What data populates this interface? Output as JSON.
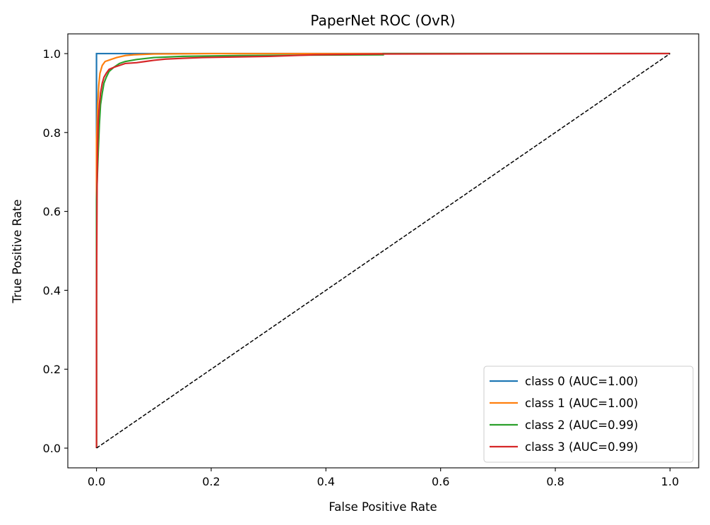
{
  "chart_data": {
    "type": "line",
    "title": "PaperNet ROC (OvR)",
    "xlabel": "False Positive Rate",
    "ylabel": "True Positive Rate",
    "xlim": [
      -0.05,
      1.05
    ],
    "ylim": [
      -0.05,
      1.05
    ],
    "xticks": [
      0.0,
      0.2,
      0.4,
      0.6,
      0.8,
      1.0
    ],
    "yticks": [
      0.0,
      0.2,
      0.4,
      0.6,
      0.8,
      1.0
    ],
    "xtick_labels": [
      "0.0",
      "0.2",
      "0.4",
      "0.6",
      "0.8",
      "1.0"
    ],
    "ytick_labels": [
      "0.0",
      "0.2",
      "0.4",
      "0.6",
      "0.8",
      "1.0"
    ],
    "grid": false,
    "legend_position": "bottom-right",
    "series": [
      {
        "name": "class 0 (AUC=1.00)",
        "color": "#1f77b4",
        "x": [
          0.0,
          0.0,
          0.0,
          1.0
        ],
        "y": [
          0.0,
          0.96,
          1.0,
          1.0
        ]
      },
      {
        "name": "class 1 (AUC=1.00)",
        "color": "#ff7f0e",
        "x": [
          0.0,
          0.0,
          0.002,
          0.004,
          0.006,
          0.01,
          0.015,
          0.025,
          0.035,
          0.05,
          0.065,
          0.1,
          0.2,
          0.4,
          1.0
        ],
        "y": [
          0.0,
          0.78,
          0.87,
          0.92,
          0.95,
          0.97,
          0.98,
          0.985,
          0.99,
          0.995,
          0.997,
          0.999,
          1.0,
          1.0,
          1.0
        ]
      },
      {
        "name": "class 2 (AUC=0.99)",
        "color": "#2ca02c",
        "x": [
          0.0,
          0.0,
          0.003,
          0.005,
          0.007,
          0.01,
          0.013,
          0.017,
          0.022,
          0.03,
          0.04,
          0.05,
          0.07,
          0.1,
          0.15,
          0.25,
          0.35,
          0.5,
          0.5,
          1.0
        ],
        "y": [
          0.0,
          0.63,
          0.75,
          0.82,
          0.87,
          0.9,
          0.925,
          0.94,
          0.955,
          0.965,
          0.975,
          0.98,
          0.985,
          0.99,
          0.993,
          0.995,
          0.996,
          0.997,
          1.0,
          1.0
        ]
      },
      {
        "name": "class 3 (AUC=0.99)",
        "color": "#d62728",
        "x": [
          0.0,
          0.0,
          0.001,
          0.002,
          0.003,
          0.005,
          0.007,
          0.01,
          0.013,
          0.017,
          0.022,
          0.03,
          0.04,
          0.05,
          0.07,
          0.085,
          0.1,
          0.12,
          0.15,
          0.185,
          0.3,
          0.38,
          0.5,
          1.0
        ],
        "y": [
          0.0,
          0.37,
          0.66,
          0.77,
          0.83,
          0.87,
          0.9,
          0.925,
          0.94,
          0.95,
          0.96,
          0.965,
          0.97,
          0.975,
          0.977,
          0.98,
          0.983,
          0.986,
          0.988,
          0.99,
          0.993,
          0.997,
          0.999,
          1.0
        ]
      },
      {
        "name": "",
        "color": "#000000",
        "dashed": true,
        "x": [
          0.0,
          1.0
        ],
        "y": [
          0.0,
          1.0
        ]
      }
    ]
  }
}
